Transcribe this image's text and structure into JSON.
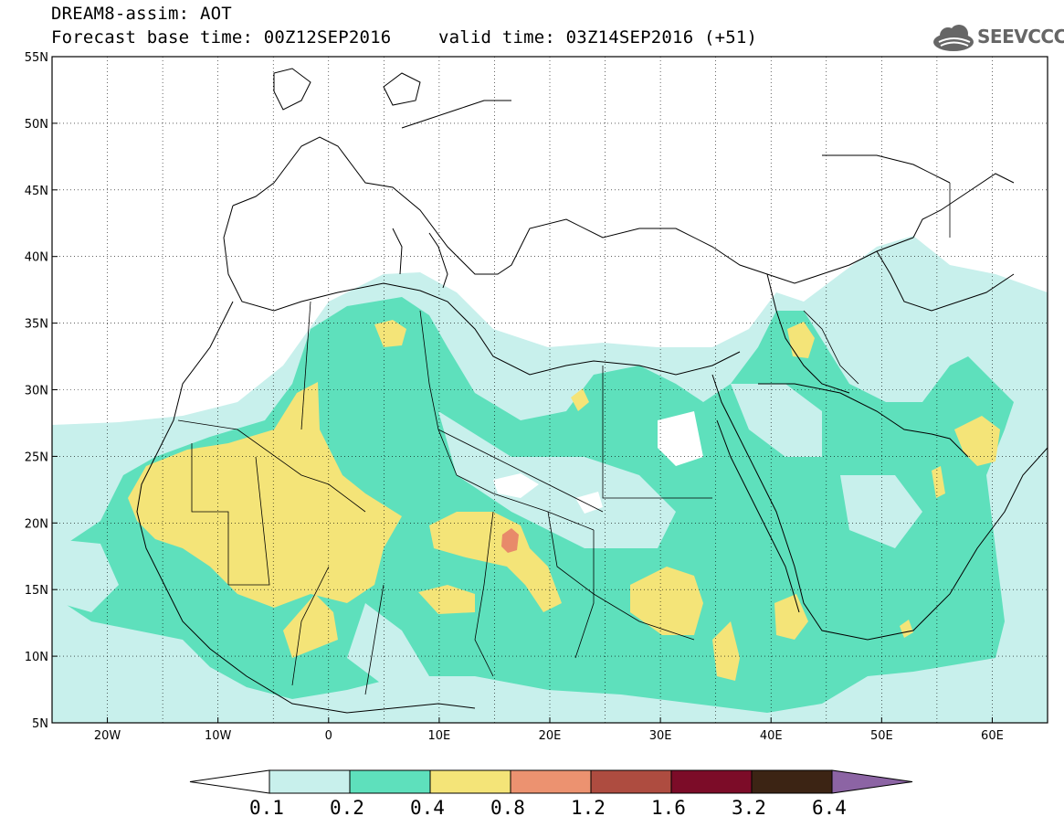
{
  "header": {
    "title_line1": "DREAM8-assim: AOT",
    "title_line2": "Forecast base time: 00Z12SEP2016",
    "valid_time": "valid time: 03Z14SEP2016 (+51)",
    "logo_text": "SEEVCCC"
  },
  "map": {
    "lon_range": [
      -25,
      65
    ],
    "lat_range": [
      5,
      55
    ],
    "lat_labels": [
      "55N",
      "50N",
      "45N",
      "40N",
      "35N",
      "30N",
      "25N",
      "20N",
      "15N",
      "10N",
      "5N"
    ],
    "lon_labels": [
      "20W",
      "10W",
      "0",
      "10E",
      "20E",
      "30E",
      "40E",
      "50E",
      "60E"
    ],
    "gridlines": "dotted",
    "colors": {
      "level_0.1": "#c8f0ec",
      "level_0.2": "#5ee0bc",
      "level_0.4": "#f4e478",
      "level_0.8": "#e88a6a",
      "borders": "#000000"
    }
  },
  "colorbar": {
    "levels": [
      "0.1",
      "0.2",
      "0.4",
      "0.8",
      "1.2",
      "1.6",
      "3.2",
      "6.4"
    ],
    "colors": [
      "#c8f0ec",
      "#5ee0bc",
      "#f4e478",
      "#ec9270",
      "#ae4c40",
      "#7c0c28",
      "#3c2414",
      "#8c64a4"
    ],
    "extend": "both"
  }
}
